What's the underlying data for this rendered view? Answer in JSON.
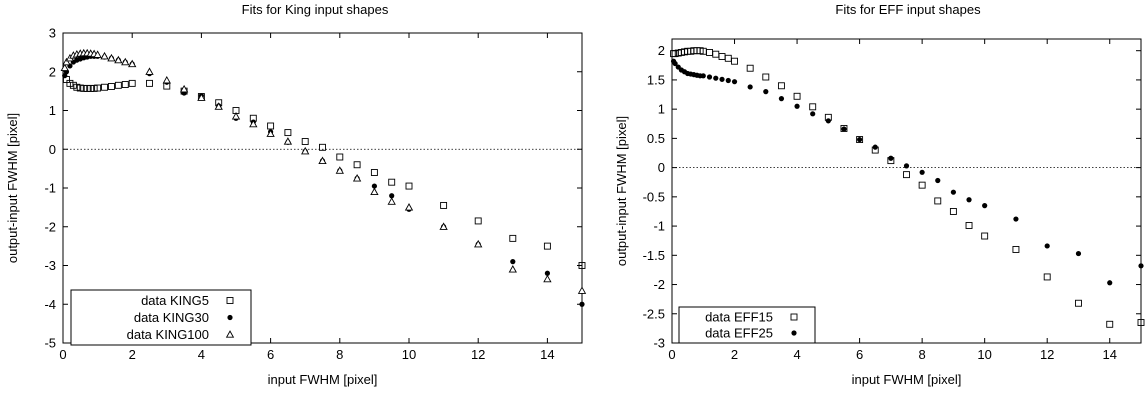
{
  "chart_data": [
    {
      "type": "scatter",
      "title": "Fits for King input shapes",
      "xlabel": "input FWHM [pixel]",
      "ylabel": "output-input FWHM [pixel]",
      "xlim": [
        0,
        15
      ],
      "ylim": [
        -5,
        3
      ],
      "xticks": [
        "0",
        "2",
        "4",
        "6",
        "8",
        "10",
        "12",
        "14"
      ],
      "yticks": [
        "-5",
        "-4",
        "-3",
        "-2",
        "-1",
        "0",
        "1",
        "2",
        "3"
      ],
      "legend_position": "bottom-left",
      "reference_line_y": 0,
      "series": [
        {
          "name": "data KING5",
          "marker": "open-square",
          "points": [
            [
              0.1,
              1.8
            ],
            [
              0.2,
              1.7
            ],
            [
              0.3,
              1.65
            ],
            [
              0.4,
              1.6
            ],
            [
              0.5,
              1.58
            ],
            [
              0.6,
              1.57
            ],
            [
              0.7,
              1.57
            ],
            [
              0.8,
              1.57
            ],
            [
              0.9,
              1.57
            ],
            [
              1.0,
              1.58
            ],
            [
              1.2,
              1.6
            ],
            [
              1.4,
              1.62
            ],
            [
              1.6,
              1.65
            ],
            [
              1.8,
              1.67
            ],
            [
              2.0,
              1.7
            ],
            [
              2.5,
              1.7
            ],
            [
              3.0,
              1.63
            ],
            [
              3.5,
              1.5
            ],
            [
              4.0,
              1.36
            ],
            [
              4.5,
              1.2
            ],
            [
              5.0,
              1.0
            ],
            [
              5.5,
              0.8
            ],
            [
              6.0,
              0.6
            ],
            [
              6.5,
              0.43
            ],
            [
              7.0,
              0.2
            ],
            [
              7.5,
              0.05
            ],
            [
              8.0,
              -0.2
            ],
            [
              8.5,
              -0.4
            ],
            [
              9.0,
              -0.6
            ],
            [
              9.5,
              -0.85
            ],
            [
              10.0,
              -0.95
            ],
            [
              11.0,
              -1.45
            ],
            [
              12.0,
              -1.85
            ],
            [
              13.0,
              -2.3
            ],
            [
              14.0,
              -2.5
            ],
            [
              15.0,
              -3.0
            ]
          ]
        },
        {
          "name": "data KING30",
          "marker": "filled-circle",
          "points": [
            [
              0.05,
              1.9
            ],
            [
              0.1,
              2.0
            ],
            [
              0.2,
              2.15
            ],
            [
              0.3,
              2.25
            ],
            [
              0.4,
              2.3
            ],
            [
              0.5,
              2.33
            ],
            [
              0.6,
              2.36
            ],
            [
              0.7,
              2.38
            ],
            [
              0.8,
              2.4
            ],
            [
              0.9,
              2.4
            ],
            [
              1.0,
              2.4
            ],
            [
              1.2,
              2.38
            ],
            [
              1.4,
              2.35
            ],
            [
              1.6,
              2.3
            ],
            [
              1.8,
              2.25
            ],
            [
              2.0,
              2.2
            ],
            [
              2.5,
              1.95
            ],
            [
              3.0,
              1.73
            ],
            [
              3.5,
              1.45
            ],
            [
              4.0,
              1.38
            ],
            [
              4.5,
              1.12
            ],
            [
              5.0,
              0.8
            ],
            [
              5.5,
              0.7
            ],
            [
              6.0,
              0.45
            ],
            [
              6.5,
              0.18
            ],
            [
              7.0,
              -0.05
            ],
            [
              7.5,
              -0.3
            ],
            [
              8.0,
              -0.55
            ],
            [
              8.5,
              -0.75
            ],
            [
              9.0,
              -0.95
            ],
            [
              9.5,
              -1.2
            ],
            [
              10.0,
              -1.55
            ],
            [
              11.0,
              -2.0
            ],
            [
              12.0,
              -2.45
            ],
            [
              13.0,
              -2.9
            ],
            [
              14.0,
              -3.2
            ],
            [
              15.0,
              -4.0
            ]
          ]
        },
        {
          "name": "data KING100",
          "marker": "open-triangle",
          "points": [
            [
              0.05,
              2.1
            ],
            [
              0.1,
              2.25
            ],
            [
              0.2,
              2.35
            ],
            [
              0.3,
              2.42
            ],
            [
              0.4,
              2.45
            ],
            [
              0.5,
              2.47
            ],
            [
              0.6,
              2.48
            ],
            [
              0.7,
              2.48
            ],
            [
              0.8,
              2.47
            ],
            [
              0.9,
              2.46
            ],
            [
              1.0,
              2.44
            ],
            [
              1.2,
              2.4
            ],
            [
              1.4,
              2.35
            ],
            [
              1.6,
              2.3
            ],
            [
              1.8,
              2.25
            ],
            [
              2.0,
              2.2
            ],
            [
              2.5,
              2.0
            ],
            [
              3.0,
              1.78
            ],
            [
              3.5,
              1.55
            ],
            [
              4.0,
              1.33
            ],
            [
              4.5,
              1.1
            ],
            [
              5.0,
              0.85
            ],
            [
              5.5,
              0.65
            ],
            [
              6.0,
              0.4
            ],
            [
              6.5,
              0.2
            ],
            [
              7.0,
              -0.05
            ],
            [
              7.5,
              -0.3
            ],
            [
              8.0,
              -0.55
            ],
            [
              8.5,
              -0.75
            ],
            [
              9.0,
              -1.1
            ],
            [
              9.5,
              -1.35
            ],
            [
              10.0,
              -1.5
            ],
            [
              11.0,
              -2.0
            ],
            [
              12.0,
              -2.45
            ],
            [
              13.0,
              -3.1
            ],
            [
              14.0,
              -3.35
            ],
            [
              15.0,
              -3.65
            ]
          ]
        }
      ]
    },
    {
      "type": "scatter",
      "title": "Fits for EFF input shapes",
      "xlabel": "input FWHM [pixel]",
      "ylabel": "output-input FWHM [pixel]",
      "xlim": [
        0,
        15
      ],
      "ylim": [
        -3,
        2.2
      ],
      "xticks": [
        "0",
        "2",
        "4",
        "6",
        "8",
        "10",
        "12",
        "14"
      ],
      "yticks": [
        "-3",
        "-2.5",
        "-2",
        "-1.5",
        "-1",
        "-0.5",
        "0",
        "0.5",
        "1",
        "1.5",
        "2"
      ],
      "legend_position": "bottom-left",
      "reference_line_y": 0,
      "series": [
        {
          "name": "data EFF15",
          "marker": "open-square",
          "points": [
            [
              0.05,
              1.95
            ],
            [
              0.1,
              1.95
            ],
            [
              0.2,
              1.96
            ],
            [
              0.3,
              1.97
            ],
            [
              0.4,
              1.98
            ],
            [
              0.5,
              1.99
            ],
            [
              0.6,
              1.99
            ],
            [
              0.7,
              2.0
            ],
            [
              0.8,
              2.0
            ],
            [
              0.9,
              2.0
            ],
            [
              1.0,
              1.99
            ],
            [
              1.2,
              1.97
            ],
            [
              1.4,
              1.94
            ],
            [
              1.6,
              1.9
            ],
            [
              1.8,
              1.87
            ],
            [
              2.0,
              1.82
            ],
            [
              2.5,
              1.7
            ],
            [
              3.0,
              1.55
            ],
            [
              3.5,
              1.4
            ],
            [
              4.0,
              1.22
            ],
            [
              4.5,
              1.04
            ],
            [
              5.0,
              0.86
            ],
            [
              5.5,
              0.67
            ],
            [
              6.0,
              0.48
            ],
            [
              6.5,
              0.3
            ],
            [
              7.0,
              0.12
            ],
            [
              7.5,
              -0.12
            ],
            [
              8.0,
              -0.3
            ],
            [
              8.5,
              -0.57
            ],
            [
              9.0,
              -0.75
            ],
            [
              9.5,
              -0.99
            ],
            [
              10.0,
              -1.17
            ],
            [
              11.0,
              -1.4
            ],
            [
              12.0,
              -1.87
            ],
            [
              13.0,
              -2.32
            ],
            [
              14.0,
              -2.68
            ],
            [
              15.0,
              -2.65
            ]
          ]
        },
        {
          "name": "data EFF25",
          "marker": "filled-circle",
          "points": [
            [
              0.05,
              1.82
            ],
            [
              0.1,
              1.78
            ],
            [
              0.2,
              1.72
            ],
            [
              0.3,
              1.67
            ],
            [
              0.4,
              1.64
            ],
            [
              0.5,
              1.61
            ],
            [
              0.6,
              1.6
            ],
            [
              0.7,
              1.59
            ],
            [
              0.8,
              1.58
            ],
            [
              0.9,
              1.57
            ],
            [
              1.0,
              1.57
            ],
            [
              1.2,
              1.55
            ],
            [
              1.4,
              1.53
            ],
            [
              1.6,
              1.51
            ],
            [
              1.8,
              1.49
            ],
            [
              2.0,
              1.47
            ],
            [
              2.5,
              1.38
            ],
            [
              3.0,
              1.3
            ],
            [
              3.5,
              1.18
            ],
            [
              4.0,
              1.05
            ],
            [
              4.5,
              0.92
            ],
            [
              5.0,
              0.8
            ],
            [
              5.5,
              0.66
            ],
            [
              6.0,
              0.48
            ],
            [
              6.5,
              0.35
            ],
            [
              7.0,
              0.16
            ],
            [
              7.5,
              0.03
            ],
            [
              8.0,
              -0.08
            ],
            [
              8.5,
              -0.22
            ],
            [
              9.0,
              -0.42
            ],
            [
              9.5,
              -0.55
            ],
            [
              10.0,
              -0.65
            ],
            [
              11.0,
              -0.88
            ],
            [
              12.0,
              -1.34
            ],
            [
              13.0,
              -1.47
            ],
            [
              14.0,
              -1.97
            ],
            [
              15.0,
              -1.68
            ]
          ]
        }
      ]
    }
  ]
}
